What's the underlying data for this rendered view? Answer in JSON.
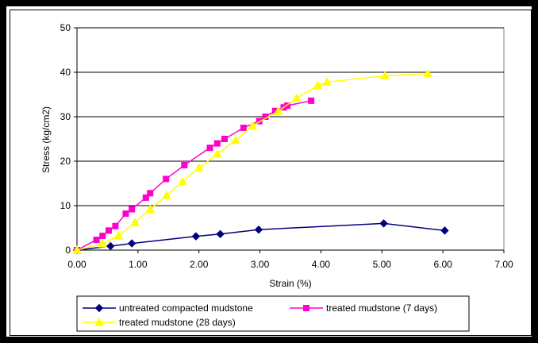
{
  "chart_data": {
    "type": "line",
    "xlabel": "Strain (%)",
    "ylabel": "Stress (kg/cm2)",
    "xlim": [
      0,
      7
    ],
    "ylim": [
      0,
      50
    ],
    "x_ticks": [
      "0.00",
      "1.00",
      "2.00",
      "3.00",
      "4.00",
      "5.00",
      "6.00",
      "7.00"
    ],
    "y_ticks": [
      "0",
      "10",
      "20",
      "30",
      "40",
      "50"
    ],
    "grid": "horizontal",
    "legend_position": "bottom",
    "series": [
      {
        "name": "untreated compacted mudstone",
        "color": "#000080",
        "marker": "diamond",
        "points": [
          [
            0.0,
            0.0
          ],
          [
            0.55,
            0.9
          ],
          [
            0.9,
            1.5
          ],
          [
            1.95,
            3.1
          ],
          [
            2.35,
            3.6
          ],
          [
            2.98,
            4.6
          ],
          [
            5.03,
            6.0
          ],
          [
            6.03,
            4.4
          ]
        ]
      },
      {
        "name": "treated mudstone (7 days)",
        "color": "#ff00cc",
        "marker": "square",
        "points": [
          [
            0.0,
            0.0
          ],
          [
            0.32,
            2.3
          ],
          [
            0.42,
            3.2
          ],
          [
            0.52,
            4.4
          ],
          [
            0.63,
            5.4
          ],
          [
            0.8,
            8.2
          ],
          [
            0.9,
            9.2
          ],
          [
            1.13,
            11.8
          ],
          [
            1.2,
            12.8
          ],
          [
            1.46,
            16.0
          ],
          [
            1.76,
            19.1
          ],
          [
            2.18,
            23.0
          ],
          [
            2.3,
            24.0
          ],
          [
            2.42,
            25.0
          ],
          [
            2.73,
            27.5
          ],
          [
            2.99,
            29.0
          ],
          [
            3.09,
            30.0
          ],
          [
            3.25,
            31.3
          ],
          [
            3.39,
            32.1
          ],
          [
            3.45,
            32.5
          ],
          [
            3.84,
            33.6
          ]
        ]
      },
      {
        "name": "treated mudstone (28 days)",
        "color": "#ffff00",
        "marker": "triangle",
        "points": [
          [
            0.0,
            0.0
          ],
          [
            0.42,
            1.4
          ],
          [
            0.68,
            3.2
          ],
          [
            0.95,
            6.2
          ],
          [
            1.2,
            9.2
          ],
          [
            1.47,
            12.3
          ],
          [
            1.73,
            15.4
          ],
          [
            2.0,
            18.5
          ],
          [
            2.3,
            21.6
          ],
          [
            2.6,
            24.7
          ],
          [
            2.88,
            28.0
          ],
          [
            3.3,
            31.2
          ],
          [
            3.6,
            34.2
          ],
          [
            3.95,
            37.0
          ],
          [
            4.1,
            37.8
          ],
          [
            5.05,
            39.2
          ],
          [
            5.75,
            39.7
          ]
        ]
      }
    ]
  }
}
